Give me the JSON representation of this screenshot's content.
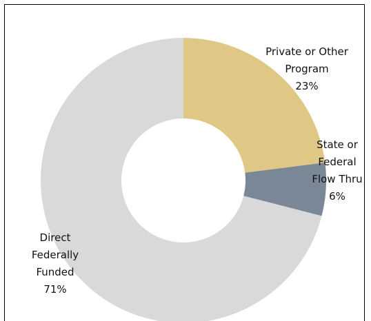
{
  "chart_data": {
    "type": "donut",
    "categories": [
      "Private or Other Program",
      "State or Federal Flow Thru",
      "Direct Federally Funded"
    ],
    "values": [
      23,
      6,
      71
    ],
    "value_labels": [
      "23%",
      "6%",
      "71%"
    ],
    "colors": [
      "#dfc785",
      "#7a8796",
      "#d9d9d9"
    ]
  }
}
